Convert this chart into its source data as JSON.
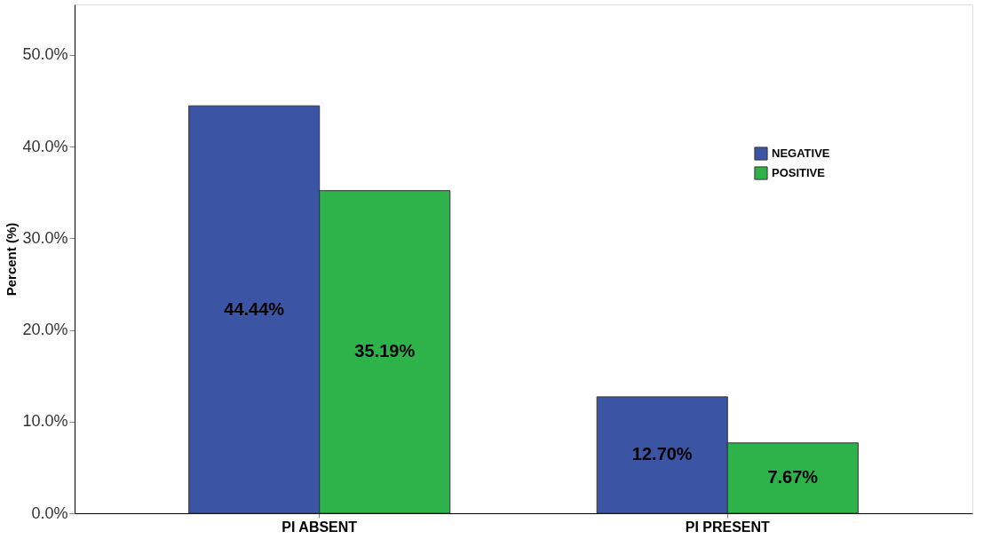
{
  "chart_data": {
    "type": "bar",
    "ylabel": "Percent (%)",
    "categories": [
      "PI ABSENT",
      "PI PRESENT"
    ],
    "series": [
      {
        "name": "NEGATIVE",
        "color": "#3c54a4",
        "values": [
          44.44,
          12.7
        ],
        "value_labels": [
          "44.44%",
          "12.70%"
        ]
      },
      {
        "name": "POSITIVE",
        "color": "#2db34a",
        "values": [
          35.19,
          7.67
        ],
        "value_labels": [
          "35.19%",
          "7.67%"
        ]
      }
    ],
    "ylim": [
      0,
      55.5
    ],
    "yticks": [
      {
        "value": 0,
        "label": "0.0%"
      },
      {
        "value": 10,
        "label": "10.0%"
      },
      {
        "value": 20,
        "label": "20.0%"
      },
      {
        "value": 30,
        "label": "30.0%"
      },
      {
        "value": 40,
        "label": "40.0%"
      },
      {
        "value": 50,
        "label": "50.0%"
      }
    ],
    "grid": false,
    "legend": "top right"
  }
}
